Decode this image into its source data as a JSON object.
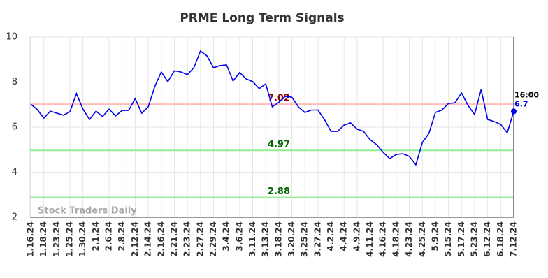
{
  "chart_data": {
    "type": "line",
    "title": "PRME Long Term Signals",
    "watermark": "Stock Traders Daily",
    "categories": [
      "1.16.24",
      null,
      "1.18.24",
      null,
      "1.23.24",
      null,
      "1.25.24",
      null,
      "1.30.24",
      null,
      "2.1.24",
      null,
      "2.6.24",
      null,
      "2.8.24",
      null,
      "2.12.24",
      null,
      "2.14.24",
      null,
      "2.16.24",
      null,
      "2.21.24",
      null,
      "2.23.24",
      null,
      "2.27.24",
      null,
      "2.29.24",
      null,
      "3.4.24",
      null,
      "3.6.24",
      null,
      "3.11.24",
      null,
      "3.13.24",
      null,
      "3.18.24",
      null,
      "3.20.24",
      null,
      "3.25.24",
      null,
      "3.27.24",
      null,
      "4.2.24",
      null,
      "4.4.24",
      null,
      "4.9.24",
      null,
      "4.11.24",
      null,
      "4.16.24",
      null,
      "4.18.24",
      null,
      "4.23.24",
      null,
      "4.25.24",
      null,
      "5.9.24",
      null,
      "5.15.24",
      null,
      "5.17.24",
      null,
      "5.23.24",
      null,
      "6.12.24",
      null,
      "6.18.24",
      null,
      "7.12.24"
    ],
    "values": [
      7.02,
      6.78,
      6.4,
      6.71,
      6.62,
      6.53,
      6.68,
      7.49,
      6.8,
      6.34,
      6.71,
      6.47,
      6.8,
      6.5,
      6.74,
      6.74,
      7.27,
      6.62,
      6.9,
      7.8,
      8.45,
      8.02,
      8.5,
      8.45,
      8.33,
      8.64,
      9.38,
      9.16,
      8.64,
      8.73,
      8.76,
      8.05,
      8.42,
      8.14,
      8.02,
      7.71,
      7.92,
      6.9,
      7.1,
      7.36,
      7.33,
      6.9,
      6.65,
      6.76,
      6.76,
      6.34,
      5.81,
      5.81,
      6.09,
      6.19,
      5.91,
      5.81,
      5.44,
      5.22,
      4.88,
      4.6,
      4.79,
      4.82,
      4.7,
      4.33,
      5.32,
      5.72,
      6.65,
      6.76,
      7.05,
      7.08,
      7.52,
      6.96,
      6.56,
      7.67,
      6.34,
      6.25,
      6.12,
      5.75,
      6.7
    ],
    "color": "#0000ee",
    "ylim": [
      2,
      10
    ],
    "yticks": [
      2,
      4,
      6,
      8,
      10
    ],
    "grid": true,
    "hlines": [
      {
        "value": 7.02,
        "color": "#ffbbbb",
        "label_color": "#8b0000"
      },
      {
        "value": 4.97,
        "color": "#90ee90",
        "label_color": "#006400"
      },
      {
        "value": 2.88,
        "color": "#90ee90",
        "label_color": "#006400"
      }
    ],
    "last_time": "16:00"
  }
}
